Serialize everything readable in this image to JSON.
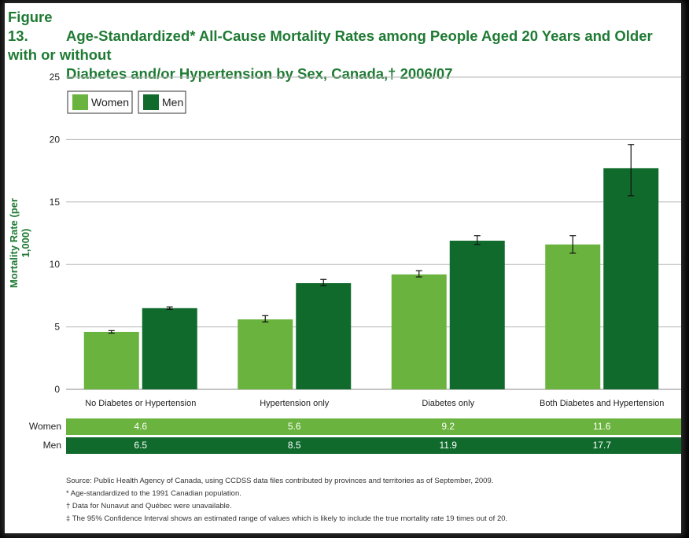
{
  "title": {
    "figure_label": "Figure 13.",
    "line1": "Age-Standardized* All-Cause Mortality Rates among People Aged 20 Years and Older with or without",
    "line2": "Diabetes and/or Hypertension by Sex, Canada,† 2006/07"
  },
  "colors": {
    "women": "#6ab33e",
    "men": "#0f6a2c",
    "title": "#1f7a33"
  },
  "chart_data": {
    "type": "bar",
    "ylabel": "Mortality Rate (per 1,000)",
    "ylim": [
      0,
      25
    ],
    "yticks": [
      "0",
      "5",
      "10",
      "15",
      "20",
      "25"
    ],
    "grid": true,
    "legend_position": "top-left",
    "categories": [
      "No Diabetes or Hypertension",
      "Hypertension only",
      "Diabetes only",
      "Both Diabetes and Hypertension"
    ],
    "series": [
      {
        "name": "Women",
        "values": [
          4.6,
          5.6,
          9.2,
          11.6
        ],
        "ci_low": [
          4.5,
          5.4,
          9.0,
          10.9
        ],
        "ci_high": [
          4.7,
          5.9,
          9.5,
          12.3
        ]
      },
      {
        "name": "Men",
        "values": [
          6.5,
          8.5,
          11.9,
          17.7
        ],
        "ci_low": [
          6.4,
          8.3,
          11.6,
          15.5
        ],
        "ci_high": [
          6.6,
          8.8,
          12.3,
          19.6
        ]
      }
    ]
  },
  "table": {
    "rows": [
      {
        "label": "Women",
        "values": [
          "4.6",
          "5.6",
          "9.2",
          "11.6"
        ]
      },
      {
        "label": "Men",
        "values": [
          "6.5",
          "8.5",
          "11.9",
          "17.7"
        ]
      }
    ]
  },
  "notes": [
    "Source: Public Health Agency of Canada, using CCDSS data files contributed by provinces and territories as of September, 2009.",
    "* Age-standardized to the 1991 Canadian population.",
    "† Data for Nunavut and Québec were unavailable.",
    "‡ The 95% Confidence Interval shows an estimated range of values which is likely to include the true mortality rate 19 times out of 20."
  ]
}
